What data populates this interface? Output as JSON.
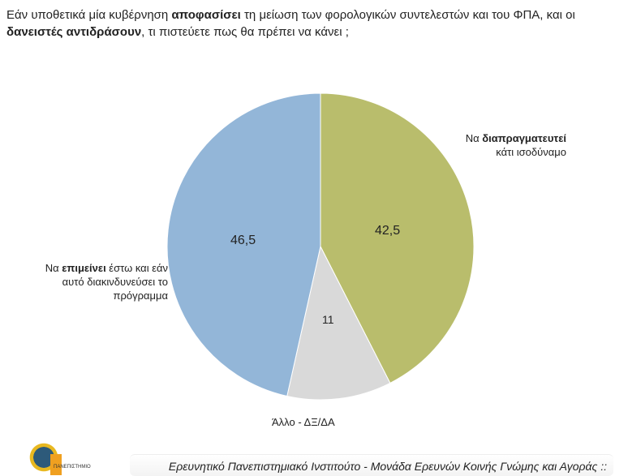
{
  "question": {
    "p1": "Εάν υποθετικά μία κυβέρνηση ",
    "b1": "αποφασίσει",
    "p2": " τη μείωση των φορολογικών συντελεστών και του ΦΠΑ, και οι ",
    "b2": "δανειστές αντιδράσουν",
    "p3": ", τι πιστεύετε πως θα πρέπει να κάνει ;"
  },
  "chart_data": {
    "type": "pie",
    "slices": [
      {
        "label_pre": "Να ",
        "label_bold": "διαπραγματευτεί",
        "label_post": "κάτι ισοδύναμο",
        "value": 42.5,
        "value_label": "42,5",
        "color": "#b9bd6c"
      },
      {
        "label_pre": "Άλλο - ΔΞ/ΔΑ",
        "label_bold": "",
        "label_post": "",
        "value": 11,
        "value_label": "11",
        "color": "#d9d9d9"
      },
      {
        "label_pre": "Να ",
        "label_bold": "επιμείνει",
        "label_post": " έστω και εάν αυτό διακινδυνεύσει το πρόγραμμα",
        "value": 46.5,
        "value_label": "46,5",
        "color": "#93b6d8"
      }
    ]
  },
  "footer": {
    "text": "Ερευνητικό Πανεπιστημιακό Ινστιτούτο - Μονάδα Ερευνών Κοινής Γνώμης και Αγοράς ::",
    "logo_text": "ΠΑΝΕΠΙΣΤΗΜΙΟ ΜΑΚΕΔΟΝΙΑΣ"
  }
}
